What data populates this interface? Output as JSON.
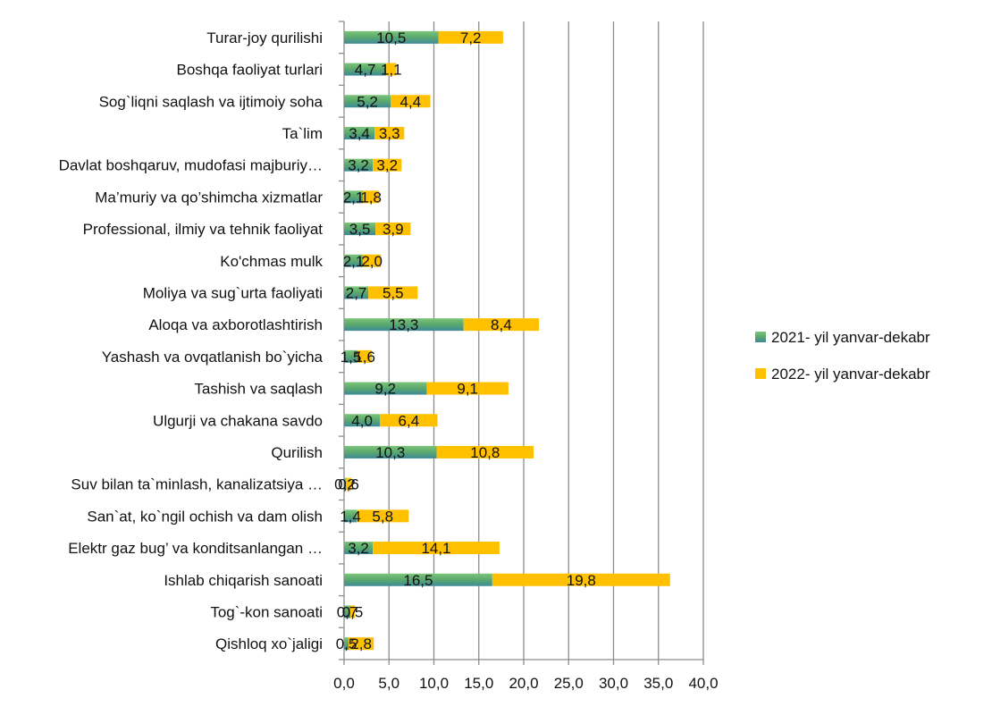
{
  "chart_data": {
    "type": "bar",
    "orientation": "horizontal",
    "stacked": true,
    "title": "",
    "xlabel": "",
    "ylabel": "",
    "xlim": [
      0,
      40
    ],
    "ticks": [
      "0,0",
      "5,0",
      "10,0",
      "15,0",
      "20,0",
      "25,0",
      "30,0",
      "35,0",
      "40,0"
    ],
    "grid": "vertical",
    "legend_position": "right",
    "categories": [
      "Turar-joy qurilishi",
      "Boshqa faoliyat turlari",
      "Sog`liqni saqlash va ijtimoiy soha",
      "Ta`lim",
      "Davlat boshqaruv, mudofasi majburiy…",
      "Ma’muriy va qo’shimcha xizmatlar",
      "Professional, ilmiy va tehnik faoliyat",
      "Ko'chmas mulk",
      "Moliya va sug`urta faoliyati",
      "Aloqa va axborotlashtirish",
      "Yashash va ovqatlanish bo`yicha",
      "Tashish va saqlash",
      "Ulgurji va chakana savdo",
      "Qurilish",
      "Suv bilan ta`minlash, kanalizatsiya …",
      "San`at, ko`ngil ochish va dam olish",
      "Elektr gaz bug’ va konditsanlangan …",
      "Ishlab chiqarish sanoati",
      "Tog`-kon sanoati",
      "Qishloq xo`jaligi"
    ],
    "series": [
      {
        "name": "2021- yil yanvar-dekabr",
        "color": "#5aa86e",
        "values": [
          10.5,
          4.7,
          5.2,
          3.4,
          3.2,
          2.1,
          3.5,
          2.1,
          2.7,
          13.3,
          1.5,
          9.2,
          4.0,
          10.3,
          0.2,
          1.4,
          3.2,
          16.5,
          0.7,
          0.5
        ],
        "labels": [
          "10,5",
          "4,7",
          "5,2",
          "3,4",
          "3,2",
          "2,1",
          "3,5",
          "2,1",
          "2,7",
          "13,3",
          "1,5",
          "9,2",
          "4,0",
          "10,3",
          "0,2",
          "1,4",
          "3,2",
          "16,5",
          "0,7",
          "0,5"
        ]
      },
      {
        "name": "2022- yil yanvar-dekabr",
        "color": "#ffc000",
        "values": [
          7.2,
          1.1,
          4.4,
          3.3,
          3.2,
          1.8,
          3.9,
          2.0,
          5.5,
          8.4,
          1.6,
          9.1,
          6.4,
          10.8,
          0.6,
          5.8,
          14.1,
          19.8,
          0.5,
          2.8
        ],
        "labels": [
          "7,2",
          "1,1",
          "4,4",
          "3,3",
          "3,2",
          "1,8",
          "3,9",
          "2,0",
          "5,5",
          "8,4",
          "1,6",
          "9,1",
          "6,4",
          "10,8",
          "0,6",
          "5,8",
          "14,1",
          "19,8",
          "0,5",
          "2,8"
        ]
      }
    ]
  }
}
